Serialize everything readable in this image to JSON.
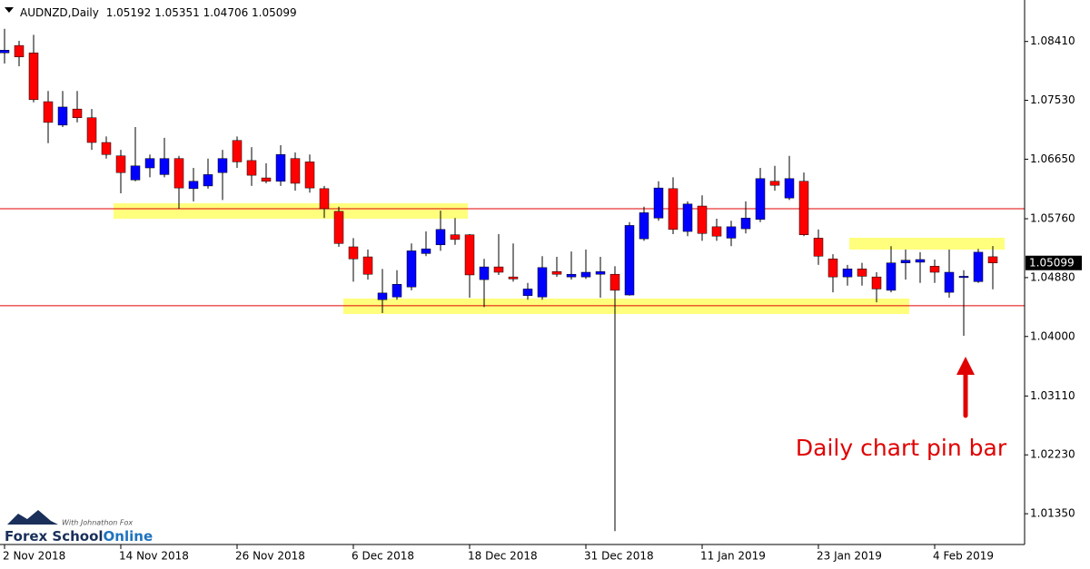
{
  "chart_data": {
    "type": "candlestick",
    "title": "AUDNZD,Daily",
    "annotation": "Daily chart pin bar",
    "logo": {
      "tagline": "With Johnathon Fox",
      "name": "Forex School",
      "name_accent": "Online"
    },
    "bull_color": "#0000ff",
    "bear_color": "#ff0000",
    "levels": [
      1.0591,
      1.0446
    ],
    "level_color": "#e00000",
    "ylim": [
      1.0089,
      1.0903
    ],
    "yticks": [
      {
        "value": 1.0841,
        "label": "1.08410"
      },
      {
        "value": 1.0753,
        "label": "1.07530"
      },
      {
        "value": 1.0665,
        "label": "1.06650"
      },
      {
        "value": 1.0576,
        "label": "1.05760"
      },
      {
        "value": 1.0488,
        "label": "1.04880"
      },
      {
        "value": 1.04,
        "label": "1.04000"
      },
      {
        "value": 1.0311,
        "label": "1.03110"
      },
      {
        "value": 1.0223,
        "label": "1.02230"
      },
      {
        "value": 1.0135,
        "label": "1.01350"
      }
    ],
    "categories": [
      "2 Nov 2018",
      null,
      null,
      null,
      null,
      null,
      null,
      null,
      "14 Nov 2018",
      null,
      null,
      null,
      null,
      null,
      null,
      null,
      "26 Nov 2018",
      null,
      null,
      null,
      null,
      null,
      null,
      null,
      "6 Dec 2018",
      null,
      null,
      null,
      null,
      null,
      null,
      null,
      "18 Dec 2018",
      null,
      null,
      null,
      null,
      null,
      null,
      null,
      "31 Dec 2018",
      null,
      null,
      null,
      null,
      null,
      null,
      null,
      "11 Jan 2019",
      null,
      null,
      null,
      null,
      null,
      null,
      null,
      "23 Jan 2019",
      null,
      null,
      null,
      null,
      null,
      null,
      null,
      "4 Feb 2019",
      null,
      null,
      null,
      null
    ],
    "open": [
      1.0824,
      1.0835,
      1.0824,
      1.0751,
      1.0716,
      1.074,
      1.0727,
      1.069,
      1.067,
      1.0634,
      1.0652,
      1.0642,
      1.0666,
      1.0621,
      1.0625,
      1.0645,
      1.0693,
      1.0663,
      1.0637,
      1.0632,
      1.0666,
      1.0661,
      1.0621,
      1.0587,
      1.0534,
      1.0519,
      1.0455,
      1.0459,
      1.0474,
      1.0524,
      1.0537,
      1.0552,
      1.0552,
      1.0485,
      1.0504,
      1.0489,
      1.0461,
      1.0459,
      1.0497,
      1.0489,
      1.0489,
      1.0493,
      1.0493,
      1.0462,
      1.0546,
      1.0577,
      1.0621,
      1.0557,
      1.0595,
      1.0564,
      1.0547,
      1.0561,
      1.0575,
      1.0632,
      1.0607,
      1.0632,
      1.0547,
      1.0516,
      1.0489,
      1.0501,
      1.0489,
      1.0469,
      1.051,
      1.0511,
      1.0505,
      1.0466,
      1.0488,
      1.0482,
      1.05192
    ],
    "high": [
      1.086,
      1.0842,
      1.0851,
      1.0767,
      1.0767,
      1.0767,
      1.074,
      1.0699,
      1.0679,
      1.0713,
      1.0672,
      1.0697,
      1.067,
      1.0652,
      1.0666,
      1.0679,
      1.0699,
      1.0683,
      1.0659,
      1.0686,
      1.0675,
      1.0672,
      1.0625,
      1.0594,
      1.0547,
      1.053,
      1.0501,
      1.0499,
      1.0539,
      1.0557,
      1.0588,
      1.0577,
      1.0553,
      1.0516,
      1.0553,
      1.0539,
      1.048,
      1.052,
      1.0519,
      1.0527,
      1.053,
      1.0519,
      1.0505,
      1.0571,
      1.0594,
      1.0632,
      1.0638,
      1.0602,
      1.0611,
      1.0576,
      1.0573,
      1.0602,
      1.0652,
      1.0655,
      1.067,
      1.0645,
      1.056,
      1.0523,
      1.0507,
      1.051,
      1.0496,
      1.0535,
      1.053,
      1.0526,
      1.0515,
      1.053,
      1.0499,
      1.0531,
      1.05351
    ],
    "low": [
      1.0808,
      1.0804,
      1.075,
      1.0689,
      1.0713,
      1.072,
      1.0679,
      1.0666,
      1.0614,
      1.0632,
      1.0638,
      1.0638,
      1.0591,
      1.0602,
      1.0621,
      1.0604,
      1.0652,
      1.0625,
      1.0629,
      1.0625,
      1.0618,
      1.0615,
      1.0577,
      1.0534,
      1.0482,
      1.0485,
      1.0435,
      1.0455,
      1.0469,
      1.052,
      1.0528,
      1.0537,
      1.0458,
      1.0444,
      1.0492,
      1.0482,
      1.0455,
      1.0455,
      1.0489,
      1.0485,
      1.0486,
      1.0458,
      1.0109,
      1.0461,
      1.0543,
      1.0573,
      1.0553,
      1.055,
      1.0543,
      1.0543,
      1.0535,
      1.0554,
      1.0571,
      1.0618,
      1.0604,
      1.055,
      1.0507,
      1.0466,
      1.0476,
      1.0476,
      1.0451,
      1.0466,
      1.0485,
      1.048,
      1.048,
      1.0458,
      1.0401,
      1.048,
      1.04706
    ],
    "close": [
      1.0828,
      1.0818,
      1.0754,
      1.072,
      1.0743,
      1.0727,
      1.069,
      1.0672,
      1.0645,
      1.0655,
      1.0666,
      1.0666,
      1.0622,
      1.0632,
      1.0642,
      1.0666,
      1.0661,
      1.0641,
      1.0632,
      1.0672,
      1.0629,
      1.0622,
      1.0591,
      1.0539,
      1.0516,
      1.0493,
      1.0465,
      1.0478,
      1.0528,
      1.0531,
      1.056,
      1.0545,
      1.0492,
      1.0504,
      1.0496,
      1.0486,
      1.0471,
      1.0503,
      1.0493,
      1.0493,
      1.0496,
      1.0497,
      1.0469,
      1.0566,
      1.0585,
      1.0622,
      1.056,
      1.0598,
      1.0554,
      1.055,
      1.0564,
      1.0577,
      1.0636,
      1.0626,
      1.0636,
      1.0552,
      1.052,
      1.0489,
      1.0501,
      1.049,
      1.0471,
      1.051,
      1.0514,
      1.0515,
      1.0496,
      1.0496,
      1.049,
      1.0526,
      1.05099
    ]
  }
}
